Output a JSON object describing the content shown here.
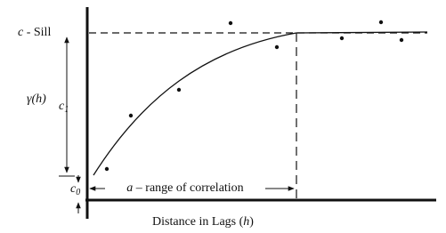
{
  "sill_label": {
    "symbol": "c",
    "text": " - Sill"
  },
  "y_axis_label": "γ(h)",
  "c1_label": {
    "base": "c",
    "sub": "1"
  },
  "c0_label": {
    "base": "c",
    "sub": "0"
  },
  "range_label": {
    "symbol": "a",
    "text": " – range of correlation"
  },
  "x_axis_label": {
    "text": "Distance in Lags (",
    "var": "h",
    "close": ")"
  }
}
